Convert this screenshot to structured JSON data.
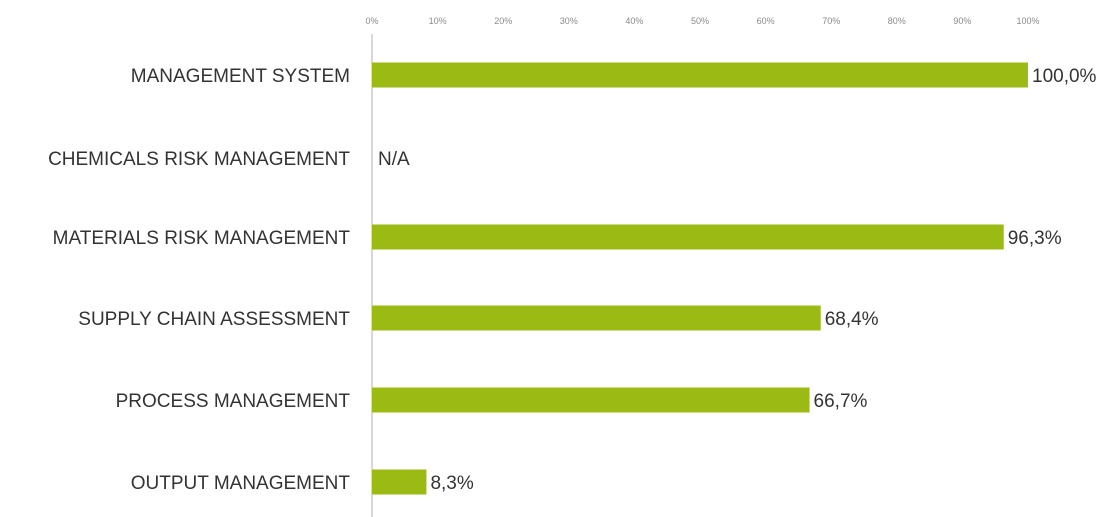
{
  "chart_data": {
    "type": "bar",
    "orientation": "horizontal",
    "title": "",
    "xlabel": "",
    "ylabel": "",
    "xlim": [
      0,
      100
    ],
    "ticks": [
      "0%",
      "10%",
      "20%",
      "30%",
      "40%",
      "50%",
      "60%",
      "70%",
      "80%",
      "90%",
      "100%"
    ],
    "tick_values": [
      0,
      10,
      20,
      30,
      40,
      50,
      60,
      70,
      80,
      90,
      100
    ],
    "grid": false,
    "legend": "none",
    "categories": [
      "MANAGEMENT SYSTEM",
      "CHEMICALS RISK MANAGEMENT",
      "MATERIALS RISK MANAGEMENT",
      "SUPPLY CHAIN ASSESSMENT",
      "PROCESS MANAGEMENT",
      "OUTPUT MANAGEMENT"
    ],
    "values": [
      100.0,
      null,
      96.3,
      68.4,
      66.7,
      8.3
    ],
    "value_labels": [
      "100,0%",
      "N/A",
      "96,3%",
      "68,4%",
      "66,7%",
      "8,3%"
    ],
    "bar_color": "#9bbb14",
    "axis_color": "#b0b0b0"
  }
}
